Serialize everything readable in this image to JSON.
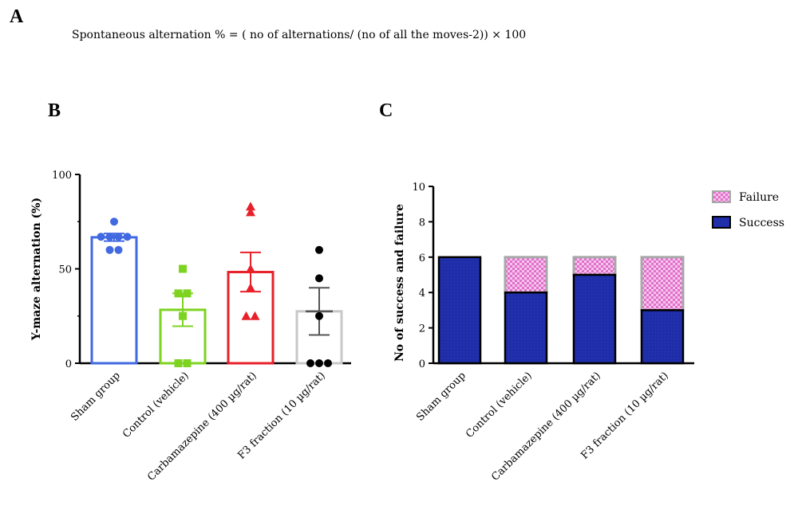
{
  "panel_labels": {
    "a": "A",
    "b": "B",
    "c": "C"
  },
  "formula": "Spontaneous alternation % = ( no of alternations/ (no of all the moves-2)) × 100",
  "colors": {
    "sham": "#4169e1",
    "control": "#7ed321",
    "carbamazepine": "#e8202a",
    "f3": "#c8c8c8",
    "f3_points": "#000000",
    "success": "#1f2ea8",
    "failure": "#e070c8",
    "failure_border": "#a8a8a8"
  },
  "chart_data": [
    {
      "type": "bar",
      "panel": "B",
      "ylabel": "Y-maze alternation (%)",
      "xlabel": "",
      "ylim": [
        0,
        100
      ],
      "yticks": [
        "0",
        "50",
        "100"
      ],
      "categories": [
        "Sham group",
        "Control (vehicle)",
        "Carbamazepine (400 µg/rat)",
        "F3 fraction (10 µg/rat)"
      ],
      "values": [
        66.7,
        28.3,
        48.3,
        27.5
      ],
      "sem": [
        2.0,
        8.7,
        10.4,
        12.5
      ],
      "points": [
        [
          75,
          67,
          67,
          67,
          67,
          60,
          60
        ],
        [
          50,
          37,
          37,
          25,
          0,
          0
        ],
        [
          83,
          80,
          50,
          40,
          25,
          25
        ],
        [
          60,
          45,
          25,
          0,
          0,
          0
        ]
      ],
      "markers": [
        "circle",
        "square",
        "triangle",
        "circle"
      ]
    },
    {
      "type": "bar",
      "stacked": true,
      "panel": "C",
      "ylabel": "No of success and failure",
      "xlabel": "",
      "ylim": [
        0,
        10
      ],
      "yticks": [
        "0",
        "2",
        "4",
        "6",
        "8",
        "10"
      ],
      "categories": [
        "Sham group",
        "Control (vehicle)",
        "Carbamazepine (400 µg/rat)",
        "F3 fraction (10 µg/rat)"
      ],
      "series": [
        {
          "name": "Success",
          "values": [
            6,
            4,
            5,
            3
          ]
        },
        {
          "name": "Failure",
          "values": [
            0,
            2,
            1,
            3
          ]
        }
      ],
      "legend": {
        "position": "top-right",
        "entries": [
          "Failure",
          "Success"
        ]
      }
    }
  ]
}
